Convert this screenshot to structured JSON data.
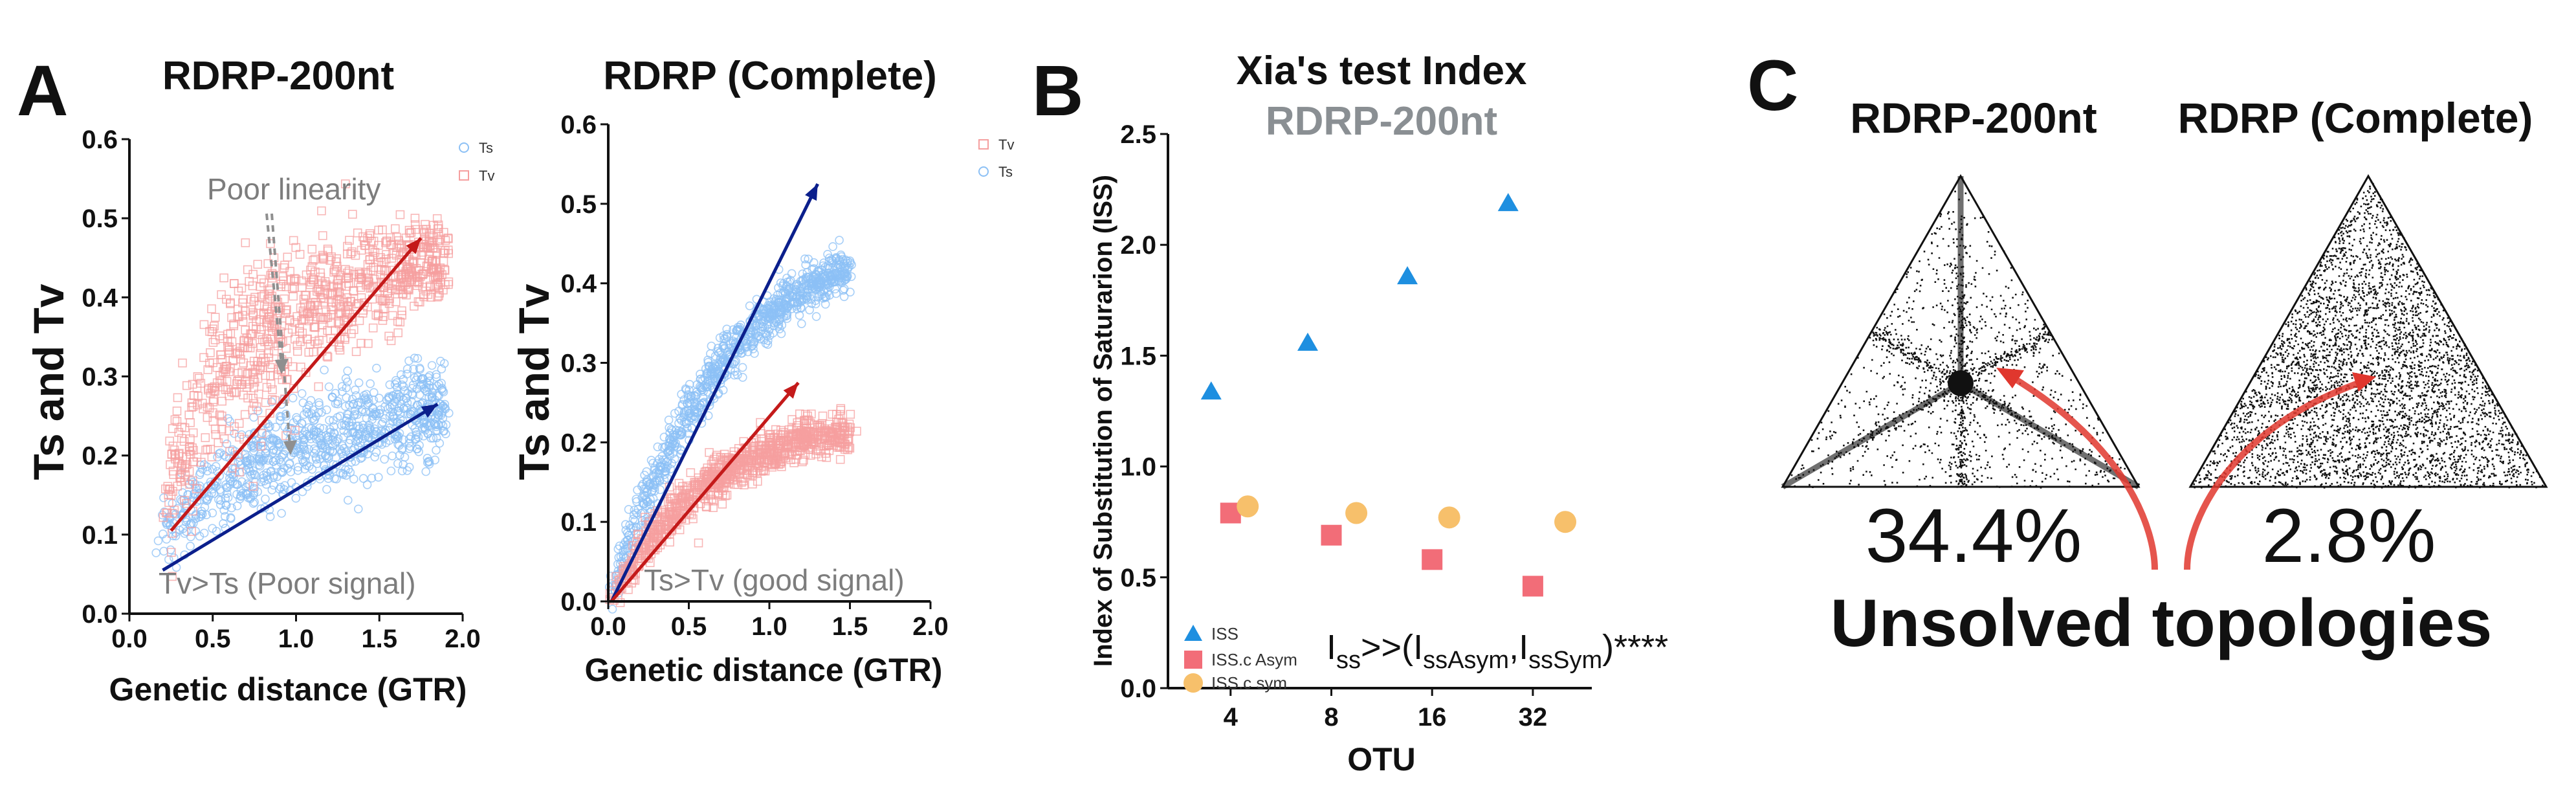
{
  "panel_a": {
    "letter": "A",
    "colors": {
      "ts": "#8cc0f5",
      "tv": "#f59f9f",
      "ts_arrow": "#0b1f8c",
      "tv_arrow": "#c41a1a",
      "annot": "#8f8f8f"
    },
    "plots": [
      {
        "title": "RDRP-200nt",
        "xlabel": "Genetic distance (GTR)",
        "ylabel": "Ts and Tv",
        "xlim": [
          0,
          2.0
        ],
        "ylim": [
          0,
          0.6
        ],
        "xticks": [
          "0.0",
          "0.5",
          "1.0",
          "1.5",
          "2.0"
        ],
        "yticks": [
          "0.0",
          "0.1",
          "0.2",
          "0.3",
          "0.4",
          "0.5",
          "0.6"
        ],
        "legend": [
          "Ts",
          "Tv"
        ],
        "annotations": [
          "Poor linearity",
          "Tv>Ts (Poor signal)"
        ]
      },
      {
        "title": "RDRP (Complete)",
        "xlabel": "Genetic distance (GTR)",
        "ylabel": "Ts and Tv",
        "xlim": [
          0,
          2.0
        ],
        "ylim": [
          0,
          0.6
        ],
        "xticks": [
          "0.0",
          "0.5",
          "1.0",
          "1.5",
          "2.0"
        ],
        "yticks": [
          "0.0",
          "0.1",
          "0.2",
          "0.3",
          "0.4",
          "0.5",
          "0.6"
        ],
        "legend": [
          "Tv",
          "Ts"
        ],
        "annotations": [
          "Ts>Tv (good signal)"
        ]
      }
    ]
  },
  "panel_b": {
    "letter": "B",
    "title": "Xia's test Index",
    "subtitle": "RDRP-200nt",
    "significance": {
      "prefix": "I",
      "sub1": "ss",
      "mid": ">>(I",
      "sub2": "ssAsym",
      "comma": ",I",
      "sub3": "ssSym",
      "suffix": ")****"
    }
  },
  "panel_c": {
    "letter": "C",
    "titles": [
      "RDRP-200nt",
      "RDRP (Complete)"
    ],
    "percents": [
      "34.4%",
      "2.8%"
    ],
    "caption": "Unsolved topologies"
  },
  "chart_data": [
    {
      "type": "scatter",
      "title": "RDRP-200nt",
      "xlabel": "Genetic distance (GTR)",
      "ylabel": "Ts and Tv",
      "xlim": [
        0,
        2.0
      ],
      "ylim": [
        0,
        0.6
      ],
      "legend_position": "top-right",
      "series": [
        {
          "name": "Ts",
          "x": [
            0.2,
            0.4,
            0.6,
            0.8,
            1.0,
            1.2,
            1.4,
            1.6,
            1.8,
            1.9
          ],
          "y": [
            0.1,
            0.14,
            0.17,
            0.19,
            0.21,
            0.225,
            0.235,
            0.245,
            0.255,
            0.26
          ],
          "spread": [
            0.02,
            0.025,
            0.03,
            0.03,
            0.03,
            0.03,
            0.03,
            0.03,
            0.03,
            0.03
          ]
        },
        {
          "name": "Tv",
          "x": [
            0.2,
            0.4,
            0.6,
            0.8,
            1.0,
            1.2,
            1.4,
            1.6,
            1.8,
            1.9
          ],
          "y": [
            0.14,
            0.25,
            0.31,
            0.35,
            0.38,
            0.4,
            0.42,
            0.43,
            0.44,
            0.45
          ],
          "spread": [
            0.04,
            0.05,
            0.05,
            0.05,
            0.045,
            0.04,
            0.035,
            0.03,
            0.03,
            0.03
          ]
        }
      ],
      "trend_arrows": [
        {
          "series": "Tv",
          "from": [
            0.25,
            0.105
          ],
          "to": [
            1.75,
            0.475
          ]
        },
        {
          "series": "Ts",
          "from": [
            0.2,
            0.055
          ],
          "to": [
            1.85,
            0.265
          ]
        }
      ]
    },
    {
      "type": "scatter",
      "title": "RDRP (Complete)",
      "xlabel": "Genetic distance (GTR)",
      "ylabel": "Ts and Tv",
      "xlim": [
        0,
        2.0
      ],
      "ylim": [
        0,
        0.6
      ],
      "legend_position": "top-right",
      "series": [
        {
          "name": "Ts",
          "x": [
            0.02,
            0.1,
            0.2,
            0.3,
            0.45,
            0.6,
            0.8,
            1.0,
            1.2,
            1.4,
            1.5
          ],
          "y": [
            0.01,
            0.06,
            0.11,
            0.16,
            0.22,
            0.27,
            0.32,
            0.36,
            0.39,
            0.41,
            0.42
          ],
          "spread": [
            0.008,
            0.012,
            0.015,
            0.015,
            0.015,
            0.015,
            0.015,
            0.014,
            0.013,
            0.012,
            0.012
          ]
        },
        {
          "name": "Tv",
          "x": [
            0.02,
            0.1,
            0.2,
            0.3,
            0.45,
            0.6,
            0.8,
            1.0,
            1.2,
            1.4,
            1.5
          ],
          "y": [
            0.005,
            0.03,
            0.06,
            0.09,
            0.12,
            0.145,
            0.17,
            0.19,
            0.205,
            0.21,
            0.212
          ],
          "spread": [
            0.006,
            0.01,
            0.012,
            0.012,
            0.013,
            0.013,
            0.013,
            0.013,
            0.012,
            0.012,
            0.012
          ]
        }
      ],
      "trend_arrows": [
        {
          "series": "Ts",
          "from": [
            0.02,
            0.0
          ],
          "to": [
            1.3,
            0.525
          ]
        },
        {
          "series": "Tv",
          "from": [
            0.02,
            0.0
          ],
          "to": [
            1.18,
            0.275
          ]
        }
      ]
    },
    {
      "type": "scatter",
      "title": "Xia's test Index",
      "subtitle": "RDRP-200nt",
      "xlabel": "OTU",
      "ylabel": "Index of Substitution of Saturarion (ISS)",
      "ylim": [
        0,
        2.5
      ],
      "xcategories": [
        "4",
        "8",
        "16",
        "32"
      ],
      "yticks": [
        "0.0",
        "0.5",
        "1.0",
        "1.5",
        "2.0",
        "2.5"
      ],
      "legend_position": "bottom-left",
      "series": [
        {
          "name": "ISS",
          "color": "#1e8fe0",
          "x": [
            3.5,
            6.8,
            13.5,
            27
          ],
          "y": [
            1.34,
            1.56,
            1.86,
            2.19
          ]
        },
        {
          "name": "ISS.c Asym",
          "color": "#f26d78",
          "x": [
            4,
            8,
            16,
            32
          ],
          "y": [
            0.79,
            0.69,
            0.58,
            0.46
          ]
        },
        {
          "name": "ISS.c sym",
          "color": "#f7c06b",
          "x": [
            4.5,
            9.5,
            18,
            40
          ],
          "y": [
            0.82,
            0.79,
            0.77,
            0.75
          ]
        }
      ]
    }
  ]
}
